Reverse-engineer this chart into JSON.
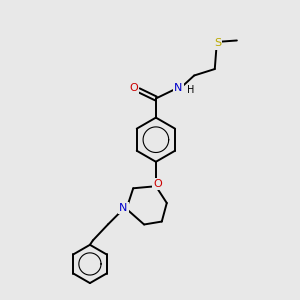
{
  "background_color": "#e8e8e8",
  "atom_colors": {
    "C": "#000000",
    "N": "#0000cc",
    "O": "#cc0000",
    "S": "#bbaa00",
    "H": "#000000"
  },
  "figsize": [
    3.0,
    3.0
  ],
  "dpi": 100,
  "lw": 1.4,
  "fontsize": 8
}
